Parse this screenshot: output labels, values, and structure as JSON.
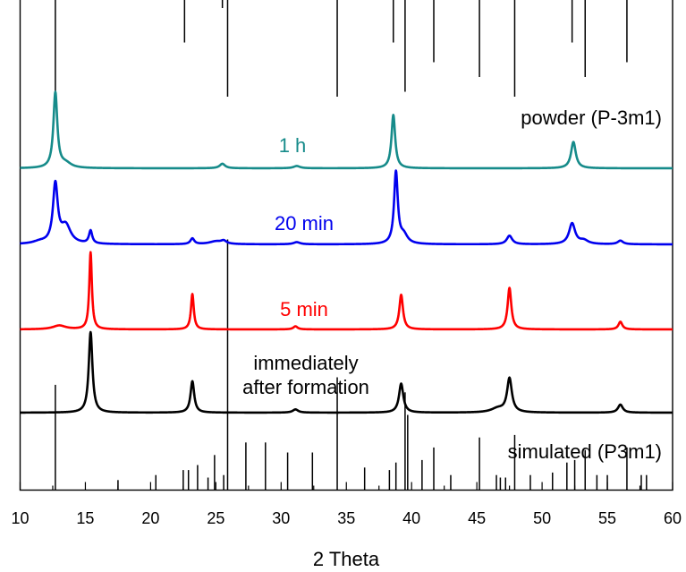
{
  "chart_data": {
    "type": "line",
    "title": "",
    "xlabel": "2 Theta",
    "ylabel": "",
    "xlim": [
      10,
      60
    ],
    "x_ticks": [
      10,
      15,
      20,
      25,
      30,
      35,
      40,
      45,
      50,
      55,
      60
    ],
    "y_ticks_shown": false,
    "grid": false,
    "legend": "none",
    "stick_patterns": [
      {
        "label": "powder (P-3m1)",
        "color": "#000000",
        "position": "top",
        "peaks": [
          {
            "x": 12.7,
            "h": 1.0
          },
          {
            "x": 22.6,
            "h": 0.45
          },
          {
            "x": 25.5,
            "h": 0.1
          },
          {
            "x": 25.9,
            "h": 1.0
          },
          {
            "x": 34.3,
            "h": 1.0
          },
          {
            "x": 38.6,
            "h": 0.45
          },
          {
            "x": 39.5,
            "h": 0.95
          },
          {
            "x": 41.7,
            "h": 0.65
          },
          {
            "x": 45.2,
            "h": 0.8
          },
          {
            "x": 47.9,
            "h": 1.0
          },
          {
            "x": 52.3,
            "h": 0.45
          },
          {
            "x": 53.3,
            "h": 0.8
          },
          {
            "x": 56.5,
            "h": 0.65
          }
        ]
      },
      {
        "label": "simulated (P3m1)",
        "color": "#000000",
        "position": "bottom",
        "peaks": [
          {
            "x": 12.7,
            "h": 0.42
          },
          {
            "x": 17.5,
            "h": 0.04
          },
          {
            "x": 20.4,
            "h": 0.06
          },
          {
            "x": 22.5,
            "h": 0.08
          },
          {
            "x": 22.9,
            "h": 0.08
          },
          {
            "x": 23.6,
            "h": 0.1
          },
          {
            "x": 24.4,
            "h": 0.05
          },
          {
            "x": 24.9,
            "h": 0.14
          },
          {
            "x": 25.6,
            "h": 0.06
          },
          {
            "x": 25.9,
            "h": 1.0
          },
          {
            "x": 27.3,
            "h": 0.19
          },
          {
            "x": 28.8,
            "h": 0.19
          },
          {
            "x": 30.5,
            "h": 0.15
          },
          {
            "x": 32.4,
            "h": 0.15
          },
          {
            "x": 34.3,
            "h": 0.45
          },
          {
            "x": 36.4,
            "h": 0.09
          },
          {
            "x": 38.3,
            "h": 0.08
          },
          {
            "x": 38.8,
            "h": 0.11
          },
          {
            "x": 39.5,
            "h": 0.39
          },
          {
            "x": 39.7,
            "h": 0.3
          },
          {
            "x": 40.8,
            "h": 0.12
          },
          {
            "x": 41.7,
            "h": 0.17
          },
          {
            "x": 43.0,
            "h": 0.06
          },
          {
            "x": 45.2,
            "h": 0.21
          },
          {
            "x": 46.5,
            "h": 0.06
          },
          {
            "x": 46.8,
            "h": 0.05
          },
          {
            "x": 47.2,
            "h": 0.05
          },
          {
            "x": 47.9,
            "h": 0.22
          },
          {
            "x": 49.1,
            "h": 0.06
          },
          {
            "x": 50.8,
            "h": 0.07
          },
          {
            "x": 51.9,
            "h": 0.11
          },
          {
            "x": 52.5,
            "h": 0.12
          },
          {
            "x": 53.3,
            "h": 0.16
          },
          {
            "x": 54.2,
            "h": 0.06
          },
          {
            "x": 55.0,
            "h": 0.06
          },
          {
            "x": 56.5,
            "h": 0.17
          },
          {
            "x": 57.6,
            "h": 0.06
          },
          {
            "x": 58.0,
            "h": 0.06
          }
        ]
      }
    ],
    "series": [
      {
        "label": "1 h",
        "color": "#168b8a",
        "peaks": [
          {
            "x": 12.7,
            "h": 1.0,
            "w": 0.18
          },
          {
            "x": 13.5,
            "h": 0.06,
            "w": 0.5
          },
          {
            "x": 25.5,
            "h": 0.06,
            "w": 0.25
          },
          {
            "x": 31.2,
            "h": 0.03,
            "w": 0.3
          },
          {
            "x": 38.6,
            "h": 0.71,
            "w": 0.17
          },
          {
            "x": 52.4,
            "h": 0.35,
            "w": 0.22
          }
        ]
      },
      {
        "label": "20 min",
        "color": "#0000ee",
        "peaks": [
          {
            "x": 12.7,
            "h": 0.82,
            "w": 0.22
          },
          {
            "x": 13.5,
            "h": 0.25,
            "w": 0.45
          },
          {
            "x": 11.5,
            "h": 0.03,
            "w": 0.6
          },
          {
            "x": 15.4,
            "h": 0.18,
            "w": 0.15
          },
          {
            "x": 23.2,
            "h": 0.08,
            "w": 0.18
          },
          {
            "x": 25.0,
            "h": 0.04,
            "w": 0.6
          },
          {
            "x": 25.6,
            "h": 0.04,
            "w": 0.25
          },
          {
            "x": 31.2,
            "h": 0.03,
            "w": 0.3
          },
          {
            "x": 38.8,
            "h": 1.0,
            "w": 0.17
          },
          {
            "x": 39.4,
            "h": 0.12,
            "w": 0.35
          },
          {
            "x": 47.5,
            "h": 0.12,
            "w": 0.25
          },
          {
            "x": 52.3,
            "h": 0.29,
            "w": 0.28
          },
          {
            "x": 53.2,
            "h": 0.05,
            "w": 0.4
          },
          {
            "x": 56.0,
            "h": 0.05,
            "w": 0.25
          }
        ]
      },
      {
        "label": "5 min",
        "color": "#ff0000",
        "peaks": [
          {
            "x": 13.0,
            "h": 0.05,
            "w": 0.6
          },
          {
            "x": 15.4,
            "h": 1.0,
            "w": 0.12
          },
          {
            "x": 23.2,
            "h": 0.46,
            "w": 0.13
          },
          {
            "x": 31.1,
            "h": 0.04,
            "w": 0.2
          },
          {
            "x": 39.2,
            "h": 0.45,
            "w": 0.17
          },
          {
            "x": 47.5,
            "h": 0.54,
            "w": 0.17
          },
          {
            "x": 56.0,
            "h": 0.1,
            "w": 0.18
          }
        ]
      },
      {
        "label": "immediately\nafter formation",
        "color": "#000000",
        "peaks": [
          {
            "x": 15.4,
            "h": 1.0,
            "w": 0.17
          },
          {
            "x": 23.2,
            "h": 0.39,
            "w": 0.17
          },
          {
            "x": 31.1,
            "h": 0.04,
            "w": 0.25
          },
          {
            "x": 39.2,
            "h": 0.36,
            "w": 0.2
          },
          {
            "x": 46.6,
            "h": 0.05,
            "w": 0.6
          },
          {
            "x": 47.5,
            "h": 0.42,
            "w": 0.22
          },
          {
            "x": 56.0,
            "h": 0.1,
            "w": 0.22
          }
        ]
      }
    ]
  }
}
